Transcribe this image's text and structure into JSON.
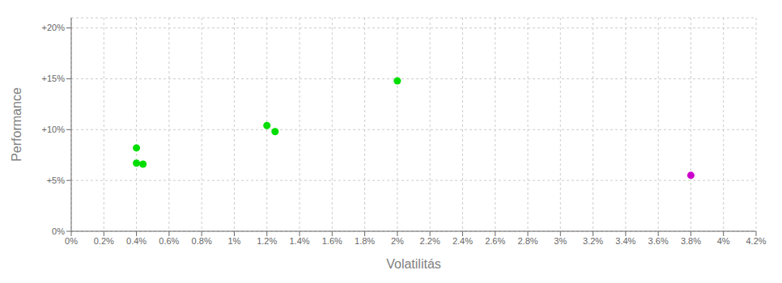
{
  "chart_data": {
    "type": "scatter",
    "xlabel": "Volatilitás",
    "ylabel": "Performance",
    "xlim": [
      0.0,
      0.042
    ],
    "ylim": [
      0.0,
      0.21
    ],
    "xticks": [
      {
        "value": 0.0,
        "label": "0%"
      },
      {
        "value": 0.002,
        "label": "0.2%"
      },
      {
        "value": 0.004,
        "label": "0.4%"
      },
      {
        "value": 0.006,
        "label": "0.6%"
      },
      {
        "value": 0.008,
        "label": "0.8%"
      },
      {
        "value": 0.01,
        "label": "1%"
      },
      {
        "value": 0.012,
        "label": "1.2%"
      },
      {
        "value": 0.014,
        "label": "1.4%"
      },
      {
        "value": 0.016,
        "label": "1.6%"
      },
      {
        "value": 0.018,
        "label": "1.8%"
      },
      {
        "value": 0.02,
        "label": "2%"
      },
      {
        "value": 0.022,
        "label": "2.2%"
      },
      {
        "value": 0.024,
        "label": "2.4%"
      },
      {
        "value": 0.026,
        "label": "2.6%"
      },
      {
        "value": 0.028,
        "label": "2.8%"
      },
      {
        "value": 0.03,
        "label": "3%"
      },
      {
        "value": 0.032,
        "label": "3.2%"
      },
      {
        "value": 0.034,
        "label": "3.4%"
      },
      {
        "value": 0.036,
        "label": "3.6%"
      },
      {
        "value": 0.038,
        "label": "3.8%"
      },
      {
        "value": 0.04,
        "label": "4%"
      },
      {
        "value": 0.042,
        "label": "4.2%"
      }
    ],
    "yticks": [
      {
        "value": 0.0,
        "label": "0%"
      },
      {
        "value": 0.05,
        "label": "+5%"
      },
      {
        "value": 0.1,
        "label": "+10%"
      },
      {
        "value": 0.15,
        "label": "+15%"
      },
      {
        "value": 0.2,
        "label": "+20%"
      }
    ],
    "grid": true,
    "series": [
      {
        "color": "#00dd00",
        "x": [
          0.004,
          0.004,
          0.0044,
          0.012,
          0.0125,
          0.02
        ],
        "values": [
          0.082,
          0.067,
          0.066,
          0.104,
          0.098,
          0.148
        ]
      },
      {
        "color": "#cc00cc",
        "x": [
          0.038
        ],
        "values": [
          0.055
        ]
      }
    ]
  }
}
